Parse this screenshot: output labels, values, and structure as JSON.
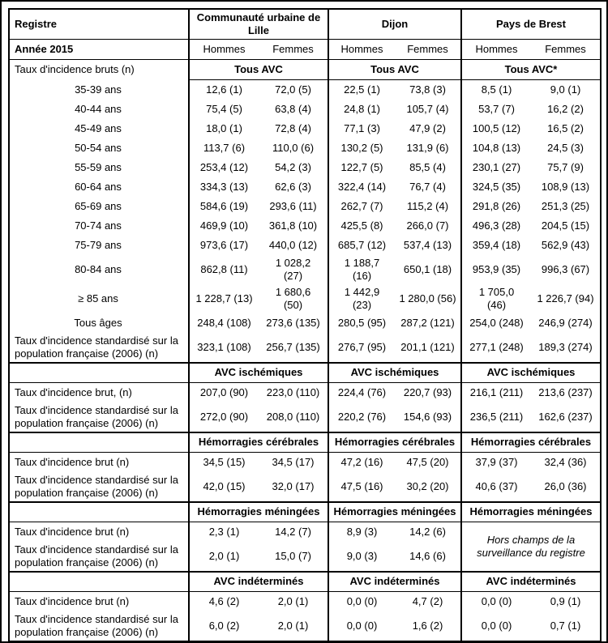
{
  "page": {
    "background_color": "#ffffff",
    "border_color": "#000000"
  },
  "table": {
    "header": {
      "registre_label": "Registre",
      "groups": [
        "Communauté urbaine de Lille",
        "Dijon",
        "Pays de Brest"
      ],
      "year_label": "Année 2015",
      "sex_labels": [
        "Hommes",
        "Femmes",
        "Hommes",
        "Femmes",
        "Hommes",
        "Femmes"
      ]
    },
    "sections": [
      {
        "col1_label": "Taux d'incidence bruts (n)",
        "subheaders": [
          "Tous AVC",
          "Tous AVC",
          "Tous AVC*"
        ],
        "rows": [
          {
            "label": "35-39 ans",
            "center": true,
            "values": [
              "12,6 (1)",
              "72,0 (5)",
              "22,5 (1)",
              "73,8 (3)",
              "8,5 (1)",
              "9,0 (1)"
            ]
          },
          {
            "label": "40-44 ans",
            "center": true,
            "values": [
              "75,4 (5)",
              "63,8 (4)",
              "24,8 (1)",
              "105,7 (4)",
              "53,7 (7)",
              "16,2 (2)"
            ]
          },
          {
            "label": "45-49 ans",
            "center": true,
            "values": [
              "18,0 (1)",
              "72,8 (4)",
              "77,1 (3)",
              "47,9 (2)",
              "100,5 (12)",
              "16,5 (2)"
            ]
          },
          {
            "label": "50-54 ans",
            "center": true,
            "values": [
              "113,7 (6)",
              "110,0 (6)",
              "130,2 (5)",
              "131,9 (6)",
              "104,8 (13)",
              "24,5 (3)"
            ]
          },
          {
            "label": "55-59 ans",
            "center": true,
            "values": [
              "253,4 (12)",
              "54,2 (3)",
              "122,7 (5)",
              "85,5 (4)",
              "230,1 (27)",
              "75,7 (9)"
            ]
          },
          {
            "label": "60-64 ans",
            "center": true,
            "values": [
              "334,3 (13)",
              "62,6 (3)",
              "322,4 (14)",
              "76,7 (4)",
              "324,5 (35)",
              "108,9 (13)"
            ]
          },
          {
            "label": "65-69 ans",
            "center": true,
            "values": [
              "584,6 (19)",
              "293,6 (11)",
              "262,7 (7)",
              "115,2 (4)",
              "291,8 (26)",
              "251,3 (25)"
            ]
          },
          {
            "label": "70-74 ans",
            "center": true,
            "values": [
              "469,9 (10)",
              "361,8 (10)",
              "425,5 (8)",
              "266,0 (7)",
              "496,3 (28)",
              "204,5 (15)"
            ]
          },
          {
            "label": "75-79 ans",
            "center": true,
            "values": [
              "973,6 (17)",
              "440,0 (12)",
              "685,7 (12)",
              "537,4 (13)",
              "359,4 (18)",
              "562,9 (43)"
            ]
          },
          {
            "label": "80-84 ans",
            "center": true,
            "values": [
              "862,8 (11)",
              "1 028,2\n(27)",
              "1 188,7\n(16)",
              "650,1 (18)",
              "953,9 (35)",
              "996,3 (67)"
            ]
          },
          {
            "label": "≥ 85 ans",
            "center": true,
            "values": [
              "1 228,7 (13)",
              "1 680,6\n(50)",
              "1 442,9\n(23)",
              "1 280,0 (56)",
              "1 705,0\n(46)",
              "1 226,7 (94)"
            ]
          },
          {
            "label": "Tous âges",
            "center": true,
            "values": [
              "248,4 (108)",
              "273,6 (135)",
              "280,5 (95)",
              "287,2 (121)",
              "254,0 (248)",
              "246,9 (274)"
            ]
          },
          {
            "label": "Taux d'incidence standardisé sur la population française (2006) (n)",
            "center": false,
            "values": [
              "323,1 (108)",
              "256,7 (135)",
              "276,7 (95)",
              "201,1 (121)",
              "277,1 (248)",
              "189,3 (274)"
            ]
          }
        ]
      },
      {
        "col1_label": "",
        "subheaders": [
          "AVC ischémiques",
          "AVC ischémiques",
          "AVC ischémiques"
        ],
        "rows": [
          {
            "label": "Taux d'incidence brut, (n)",
            "center": false,
            "values": [
              "207,0 (90)",
              "223,0 (110)",
              "224,4 (76)",
              "220,7 (93)",
              "216,1 (211)",
              "213,6 (237)"
            ]
          },
          {
            "label": "Taux d'incidence standardisé sur la population française (2006) (n)",
            "center": false,
            "values": [
              "272,0 (90)",
              "208,0 (110)",
              "220,2 (76)",
              "154,6 (93)",
              "236,5 (211)",
              "162,6 (237)"
            ]
          }
        ]
      },
      {
        "col1_label": "",
        "subheaders": [
          "Hémorragies cérébrales",
          "Hémorragies cérébrales",
          "Hémorragies cérébrales"
        ],
        "rows": [
          {
            "label": "Taux d'incidence brut (n)",
            "center": false,
            "values": [
              "34,5 (15)",
              "34,5 (17)",
              "47,2 (16)",
              "47,5 (20)",
              "37,9 (37)",
              "32,4 (36)"
            ]
          },
          {
            "label": "Taux d'incidence standardisé sur la population française (2006) (n)",
            "center": false,
            "values": [
              "42,0 (15)",
              "32,0 (17)",
              "47,5 (16)",
              "30,2 (20)",
              "40,6 (37)",
              "26,0 (36)"
            ]
          }
        ]
      },
      {
        "col1_label": "",
        "subheaders": [
          "Hémorragies méningées",
          "Hémorragies méningées",
          "Hémorragies méningées"
        ],
        "note": "Hors champs de la surveillance du registre",
        "rows": [
          {
            "label": "Taux d'incidence brut (n)",
            "center": false,
            "note_here": true,
            "values": [
              "2,3 (1)",
              "14,2 (7)",
              "8,9 (3)",
              "14,2 (6)"
            ]
          },
          {
            "label": "Taux d'incidence standardisé sur la population française (2006) (n)",
            "center": false,
            "values": [
              "2,0 (1)",
              "15,0 (7)",
              "9,0 (3)",
              "14,6 (6)"
            ]
          }
        ]
      },
      {
        "col1_label": "",
        "subheaders": [
          "AVC indéterminés",
          "AVC indéterminés",
          "AVC indéterminés"
        ],
        "rows": [
          {
            "label": "Taux d'incidence brut (n)",
            "center": false,
            "values": [
              "4,6 (2)",
              "2,0 (1)",
              "0,0 (0)",
              "4,7 (2)",
              "0,0 (0)",
              "0,9 (1)"
            ]
          },
          {
            "label": "Taux d'incidence standardisé sur la population française (2006) (n)",
            "center": false,
            "values": [
              "6,0 (2)",
              "2,0 (1)",
              "0,0 (0)",
              "1,6 (2)",
              "0,0 (0)",
              "0,7 (1)"
            ]
          }
        ]
      }
    ]
  }
}
